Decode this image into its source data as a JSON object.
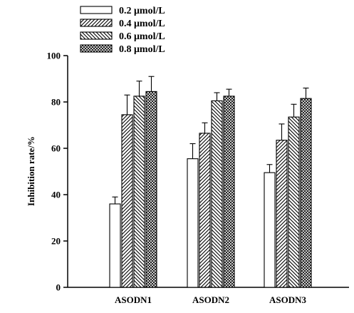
{
  "chart_data": {
    "type": "bar",
    "title": "",
    "xlabel": "",
    "ylabel": "Inhibition rate/%",
    "ylim": [
      0,
      100
    ],
    "yticks": [
      0,
      20,
      40,
      60,
      80,
      100
    ],
    "grid": false,
    "legend_position": "top-left",
    "categories": [
      "ASODN1",
      "ASODN2",
      "ASODN3"
    ],
    "series": [
      {
        "name": "0.2 μmol/L",
        "pattern": "none",
        "values": [
          36,
          55.5,
          49.5
        ],
        "errors": [
          3,
          6.5,
          3.5
        ]
      },
      {
        "name": "0.4 μmol/L",
        "pattern": "diag-forward",
        "values": [
          74.5,
          66.5,
          63.5
        ],
        "errors": [
          8.5,
          4.5,
          7
        ]
      },
      {
        "name": "0.6 μmol/L",
        "pattern": "diag-back",
        "values": [
          82.5,
          80.5,
          73.5
        ],
        "errors": [
          6.5,
          3.5,
          5.5
        ]
      },
      {
        "name": "0.8 μmol/L",
        "pattern": "crosshatch",
        "values": [
          84.5,
          82.5,
          81.5
        ],
        "errors": [
          6.5,
          3,
          4.5
        ]
      }
    ]
  }
}
